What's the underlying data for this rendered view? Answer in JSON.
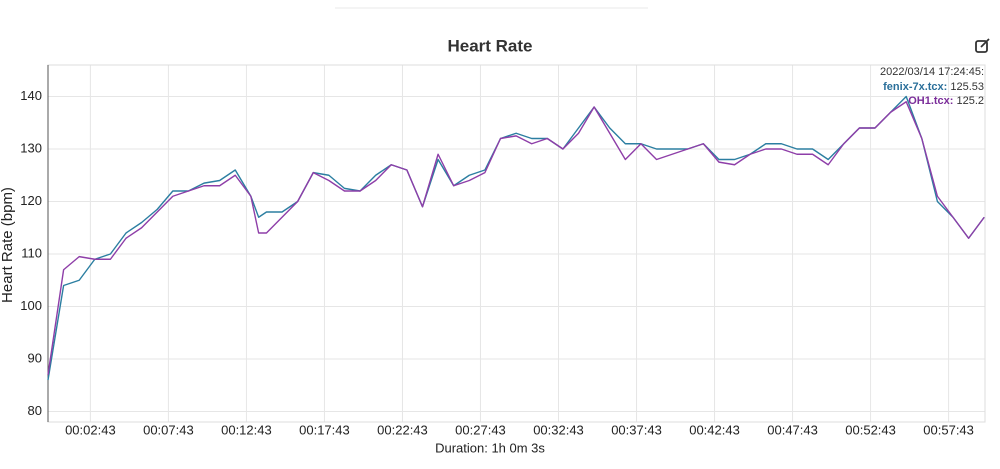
{
  "chart_data": {
    "type": "line",
    "title": "Heart Rate",
    "y_label": "Heart Rate (bpm)",
    "x_label": "Duration: 1h 0m 3s",
    "xlim": [
      0,
      3603
    ],
    "ylim": [
      78,
      146
    ],
    "yticks": [
      80,
      90,
      100,
      110,
      120,
      130,
      140
    ],
    "xticks": [
      {
        "value": 163,
        "label": "00:02:43"
      },
      {
        "value": 463,
        "label": "00:07:43"
      },
      {
        "value": 763,
        "label": "00:12:43"
      },
      {
        "value": 1063,
        "label": "00:17:43"
      },
      {
        "value": 1363,
        "label": "00:22:43"
      },
      {
        "value": 1663,
        "label": "00:27:43"
      },
      {
        "value": 1963,
        "label": "00:32:43"
      },
      {
        "value": 2263,
        "label": "00:37:43"
      },
      {
        "value": 2563,
        "label": "00:42:43"
      },
      {
        "value": 2863,
        "label": "00:47:43"
      },
      {
        "value": 3163,
        "label": "00:52:43"
      },
      {
        "value": 3463,
        "label": "00:57:43"
      }
    ],
    "grid": true,
    "x": [
      0,
      60,
      120,
      180,
      240,
      300,
      360,
      420,
      480,
      540,
      600,
      660,
      720,
      780,
      810,
      840,
      900,
      960,
      1020,
      1080,
      1140,
      1200,
      1260,
      1320,
      1380,
      1440,
      1500,
      1560,
      1620,
      1680,
      1740,
      1800,
      1860,
      1920,
      1980,
      2040,
      2100,
      2160,
      2220,
      2280,
      2340,
      2400,
      2460,
      2520,
      2580,
      2640,
      2700,
      2760,
      2820,
      2880,
      2940,
      3000,
      3060,
      3120,
      3180,
      3240,
      3300,
      3360,
      3420,
      3480,
      3540,
      3600
    ],
    "series": [
      {
        "name": "fenix-7x.tcx",
        "color": "#2b7ea1",
        "values": [
          86,
          104,
          105,
          109,
          110,
          114,
          116,
          118.5,
          122,
          122,
          123.5,
          124,
          126,
          121,
          117,
          118,
          118,
          120,
          125.5,
          125,
          122.5,
          122,
          125,
          127,
          126,
          119,
          128,
          123,
          125,
          126,
          132,
          133,
          132,
          132,
          130,
          134,
          138,
          134,
          131,
          131,
          130,
          130,
          130,
          131,
          128,
          128,
          129,
          131,
          131,
          130,
          130,
          128,
          131,
          134,
          134,
          137,
          140,
          132,
          120,
          117,
          113,
          117
        ]
      },
      {
        "name": "OH1.tcx",
        "color": "#8e3ea8",
        "values": [
          87,
          107,
          109.5,
          109,
          109,
          113,
          115,
          118,
          121,
          122,
          123,
          123,
          125,
          121,
          114,
          114,
          117,
          120,
          125.5,
          124,
          122,
          122,
          124,
          127,
          126,
          119,
          129,
          123,
          124,
          125.5,
          132,
          132.5,
          131,
          132,
          130,
          133,
          138,
          133,
          128,
          131,
          128,
          129,
          130,
          131,
          127.5,
          127,
          129,
          130,
          130,
          129,
          129,
          127,
          131,
          134,
          134,
          137,
          139,
          132,
          121,
          117,
          113,
          117
        ]
      }
    ],
    "tooltip": {
      "title": "2022/03/14 17:24:45:",
      "entries": [
        {
          "label": "fenix-7x.tcx:",
          "value": 125.53,
          "color": "#2a6f9a"
        },
        {
          "label": "OH1.tcx:",
          "value": 125.2,
          "color": "#7b2d9a"
        }
      ]
    }
  }
}
